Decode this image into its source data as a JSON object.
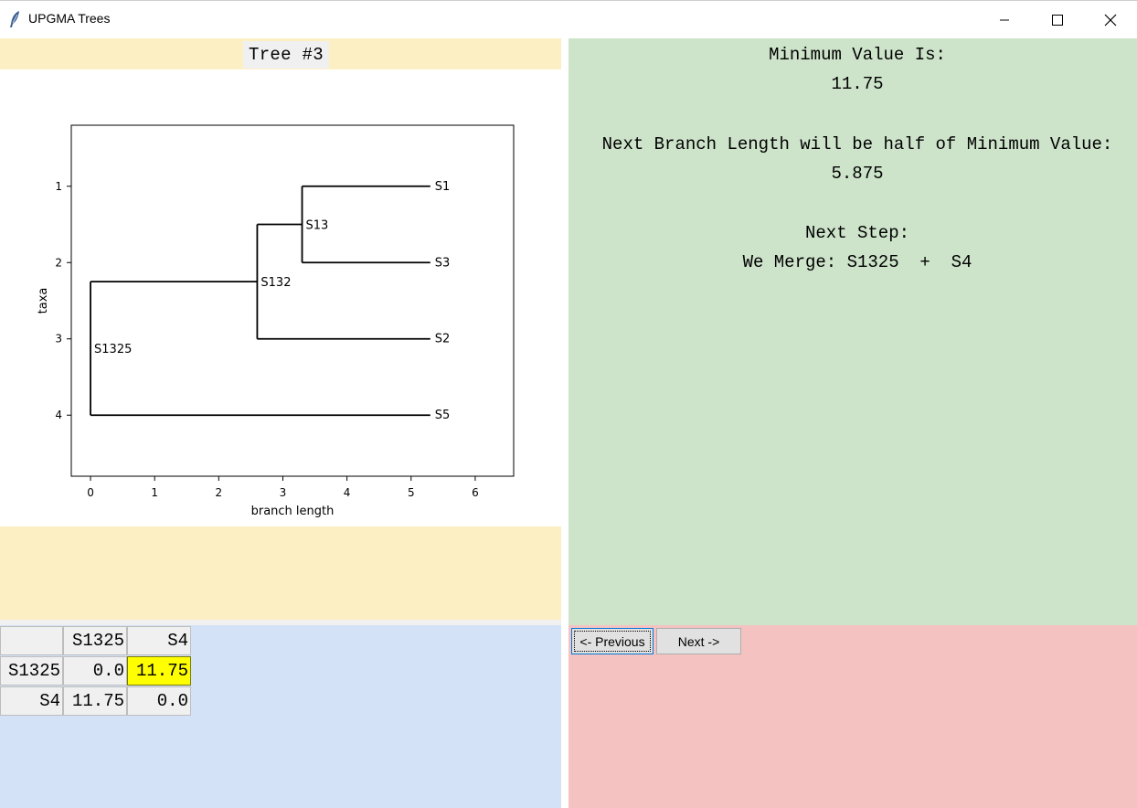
{
  "window": {
    "title": "UPGMA Trees",
    "icon": "feather-icon",
    "controls": [
      "minimize-icon",
      "maximize-icon",
      "close-icon"
    ]
  },
  "tree_panel": {
    "title": "Tree #3"
  },
  "chart_data": {
    "type": "dendrogram",
    "xlabel": "branch length",
    "ylabel": "taxa",
    "xlim": [
      -0.3,
      6.6
    ],
    "ylim": [
      0.2,
      4.8
    ],
    "y_inverted": true,
    "x_ticks": [
      "0",
      "1",
      "2",
      "3",
      "4",
      "5",
      "6"
    ],
    "y_ticks": [
      "1",
      "2",
      "3",
      "4"
    ],
    "leaves": [
      {
        "name": "S1",
        "y": 1
      },
      {
        "name": "S3",
        "y": 2
      },
      {
        "name": "S2",
        "y": 3
      },
      {
        "name": "S5",
        "y": 4
      }
    ],
    "leaf_x": 5.3,
    "nodes": [
      {
        "name": "S13",
        "x": 3.3,
        "y_top": 1,
        "y_bottom": 2,
        "y": 1.5
      },
      {
        "name": "S132",
        "x": 2.6,
        "y_top": 1.5,
        "y_bottom": 3,
        "y": 2.25
      },
      {
        "name": "S1325",
        "x": 0.0,
        "y_top": 2.25,
        "y_bottom": 4,
        "y": 3.125
      }
    ],
    "segments": [
      {
        "x1": 3.3,
        "y1": 1,
        "x2": 5.3,
        "y2": 1
      },
      {
        "x1": 3.3,
        "y1": 2,
        "x2": 5.3,
        "y2": 2
      },
      {
        "x1": 3.3,
        "y1": 1,
        "x2": 3.3,
        "y2": 2
      },
      {
        "x1": 2.6,
        "y1": 1.5,
        "x2": 3.3,
        "y2": 1.5
      },
      {
        "x1": 2.6,
        "y1": 3,
        "x2": 5.3,
        "y2": 3
      },
      {
        "x1": 2.6,
        "y1": 1.5,
        "x2": 2.6,
        "y2": 3
      },
      {
        "x1": 0.0,
        "y1": 2.25,
        "x2": 2.6,
        "y2": 2.25
      },
      {
        "x1": 0.0,
        "y1": 4,
        "x2": 5.3,
        "y2": 4
      },
      {
        "x1": 0.0,
        "y1": 2.25,
        "x2": 0.0,
        "y2": 4
      }
    ],
    "grid": false,
    "line_color": "#000000"
  },
  "matrix": {
    "columns": [
      "",
      "S1325",
      "S4"
    ],
    "rows": [
      {
        "label": "S1325",
        "values": [
          "0.0",
          "11.75"
        ]
      },
      {
        "label": "S4",
        "values": [
          "11.75",
          "0.0"
        ]
      }
    ],
    "highlight_color": "#ffff00"
  },
  "info": {
    "min_label": "Minimum Value Is:",
    "min_value": "11.75",
    "branch_label": "Next Branch Length will be half of Minimum Value:",
    "branch_value": "5.875",
    "step_label": "Next Step:",
    "merge_text": "We Merge: S1325  +  S4"
  },
  "nav": {
    "previous_label": "<- Previous",
    "next_label": "Next ->"
  },
  "colors": {
    "tree_panel": "#fdefc4",
    "matrix_panel": "#d3e2f7",
    "info_panel": "#cde4ca",
    "nav_panel": "#f4c2c0"
  }
}
